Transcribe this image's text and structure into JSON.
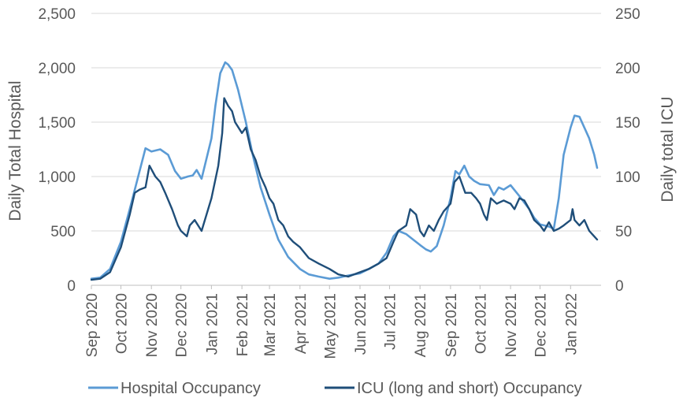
{
  "chart_data": {
    "type": "line",
    "title": "",
    "y_left_label": "Daily Total Hospital",
    "y_right_label": "Daily total ICU",
    "y_left_lim": [
      0,
      2500
    ],
    "y_right_lim": [
      0,
      250
    ],
    "y_left_ticks": [
      "0",
      "500",
      "1,000",
      "1,500",
      "2,000",
      "2,500"
    ],
    "y_right_ticks": [
      "0",
      "50",
      "100",
      "150",
      "200",
      "250"
    ],
    "x_ticks": [
      "Sep 2020",
      "Oct 2020",
      "Nov 2020",
      "Dec 2020",
      "Jan 2021",
      "Feb 2021",
      "Mar 2021",
      "Apr 2021",
      "May 2021",
      "Jun 2021",
      "Jul 2021",
      "Aug 2021",
      "Sep 2021",
      "Oct 2021",
      "Nov 2021",
      "Dec 2021",
      "Jan 2022"
    ],
    "grid": true,
    "legend_position": "bottom",
    "series": [
      {
        "name": "Hospital Occupancy",
        "axis": "left",
        "color": "#5b9bd5",
        "x": [
          "2020-09-01",
          "2020-09-10",
          "2020-09-20",
          "2020-10-01",
          "2020-10-10",
          "2020-10-20",
          "2020-10-26",
          "2020-11-01",
          "2020-11-10",
          "2020-11-18",
          "2020-11-25",
          "2020-12-01",
          "2020-12-08",
          "2020-12-13",
          "2020-12-17",
          "2020-12-22",
          "2021-01-01",
          "2021-01-05",
          "2021-01-10",
          "2021-01-15",
          "2021-01-18",
          "2021-01-22",
          "2021-01-28",
          "2021-02-05",
          "2021-02-12",
          "2021-02-20",
          "2021-03-01",
          "2021-03-10",
          "2021-03-20",
          "2021-04-01",
          "2021-04-10",
          "2021-04-20",
          "2021-05-01",
          "2021-05-10",
          "2021-05-20",
          "2021-06-01",
          "2021-06-10",
          "2021-06-20",
          "2021-06-28",
          "2021-07-05",
          "2021-07-10",
          "2021-07-18",
          "2021-07-25",
          "2021-08-01",
          "2021-08-07",
          "2021-08-12",
          "2021-08-18",
          "2021-08-25",
          "2021-09-01",
          "2021-09-06",
          "2021-09-10",
          "2021-09-15",
          "2021-09-20",
          "2021-09-25",
          "2021-10-01",
          "2021-10-10",
          "2021-10-15",
          "2021-10-20",
          "2021-10-25",
          "2021-11-01",
          "2021-11-10",
          "2021-11-20",
          "2021-11-25",
          "2021-12-01",
          "2021-12-10",
          "2021-12-15",
          "2021-12-20",
          "2021-12-25",
          "2022-01-01",
          "2022-01-05",
          "2022-01-10",
          "2022-01-15",
          "2022-01-20",
          "2022-01-25",
          "2022-01-28"
        ],
        "y": [
          60,
          70,
          150,
          400,
          700,
          1050,
          1260,
          1230,
          1250,
          1200,
          1050,
          980,
          1000,
          1010,
          1060,
          980,
          1350,
          1650,
          1950,
          2050,
          2030,
          1980,
          1800,
          1500,
          1200,
          900,
          650,
          420,
          260,
          150,
          100,
          80,
          60,
          70,
          90,
          110,
          150,
          200,
          300,
          450,
          500,
          470,
          420,
          370,
          330,
          310,
          360,
          550,
          800,
          1050,
          1020,
          1100,
          1000,
          960,
          930,
          920,
          830,
          900,
          880,
          920,
          820,
          700,
          620,
          560,
          540,
          520,
          800,
          1200,
          1450,
          1560,
          1550,
          1450,
          1350,
          1200,
          1080
        ]
      },
      {
        "name": "ICU (long and short) Occupancy",
        "axis": "right",
        "color": "#1f4e79",
        "x": [
          "2020-09-01",
          "2020-09-10",
          "2020-09-20",
          "2020-10-01",
          "2020-10-10",
          "2020-10-15",
          "2020-10-20",
          "2020-10-26",
          "2020-10-30",
          "2020-11-05",
          "2020-11-10",
          "2020-11-15",
          "2020-11-22",
          "2020-11-28",
          "2020-12-01",
          "2020-12-07",
          "2020-12-10",
          "2020-12-15",
          "2020-12-22",
          "2021-01-01",
          "2021-01-08",
          "2021-01-12",
          "2021-01-14",
          "2021-01-18",
          "2021-01-22",
          "2021-01-25",
          "2021-02-01",
          "2021-02-05",
          "2021-02-10",
          "2021-02-15",
          "2021-02-20",
          "2021-02-25",
          "2021-03-01",
          "2021-03-05",
          "2021-03-10",
          "2021-03-15",
          "2021-03-20",
          "2021-03-25",
          "2021-04-01",
          "2021-04-10",
          "2021-04-20",
          "2021-05-01",
          "2021-05-10",
          "2021-05-20",
          "2021-06-01",
          "2021-06-10",
          "2021-06-20",
          "2021-06-28",
          "2021-07-05",
          "2021-07-10",
          "2021-07-18",
          "2021-07-22",
          "2021-07-28",
          "2021-08-01",
          "2021-08-05",
          "2021-08-10",
          "2021-08-15",
          "2021-08-20",
          "2021-08-25",
          "2021-09-01",
          "2021-09-05",
          "2021-09-10",
          "2021-09-12",
          "2021-09-16",
          "2021-09-22",
          "2021-09-27",
          "2021-10-01",
          "2021-10-05",
          "2021-10-08",
          "2021-10-12",
          "2021-10-18",
          "2021-10-25",
          "2021-11-01",
          "2021-11-05",
          "2021-11-10",
          "2021-11-15",
          "2021-11-20",
          "2021-11-25",
          "2021-12-01",
          "2021-12-05",
          "2021-12-10",
          "2021-12-15",
          "2021-12-20",
          "2021-12-25",
          "2022-01-01",
          "2022-01-03",
          "2022-01-05",
          "2022-01-10",
          "2022-01-15",
          "2022-01-20",
          "2022-01-25",
          "2022-01-28"
        ],
        "y": [
          5,
          6,
          12,
          35,
          65,
          85,
          88,
          90,
          110,
          100,
          95,
          85,
          70,
          55,
          50,
          45,
          55,
          60,
          50,
          80,
          110,
          140,
          172,
          165,
          160,
          150,
          140,
          145,
          125,
          115,
          100,
          90,
          80,
          75,
          60,
          55,
          45,
          40,
          35,
          25,
          20,
          15,
          10,
          8,
          12,
          15,
          20,
          25,
          40,
          50,
          55,
          70,
          65,
          50,
          45,
          55,
          50,
          60,
          68,
          75,
          95,
          100,
          95,
          85,
          85,
          80,
          75,
          65,
          60,
          80,
          75,
          78,
          75,
          70,
          80,
          78,
          70,
          60,
          55,
          50,
          58,
          50,
          52,
          55,
          60,
          70,
          60,
          55,
          60,
          50,
          45,
          42
        ]
      }
    ]
  }
}
